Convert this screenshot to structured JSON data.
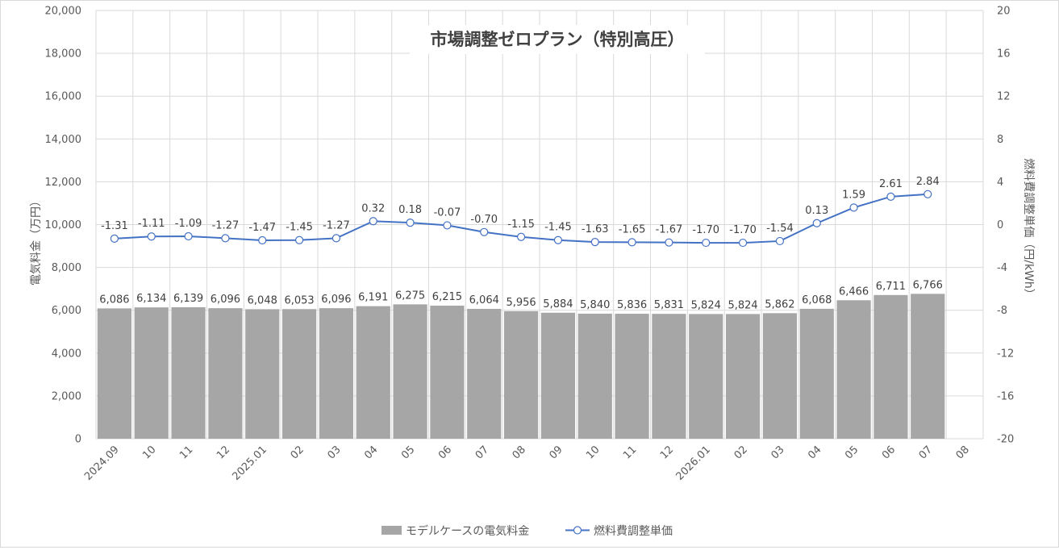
{
  "chart_data": {
    "type": "bar",
    "title": "市場調整ゼロプラン（特別高圧）",
    "categories": [
      "2024.09",
      "10",
      "11",
      "12",
      "2025.01",
      "02",
      "03",
      "04",
      "05",
      "06",
      "07",
      "08",
      "09",
      "10",
      "11",
      "12",
      "2026.01",
      "02",
      "03",
      "04",
      "05",
      "06",
      "07",
      "08"
    ],
    "series": [
      {
        "name": "モデルケースの電気料金",
        "type": "bar",
        "axis": "left",
        "color": "#a6a6a6",
        "values": [
          6086,
          6134,
          6139,
          6096,
          6048,
          6053,
          6096,
          6191,
          6275,
          6215,
          6064,
          5956,
          5884,
          5840,
          5836,
          5831,
          5824,
          5824,
          5862,
          6068,
          6466,
          6711,
          6766,
          null
        ],
        "labels": [
          "6,086",
          "6,134",
          "6,139",
          "6,096",
          "6,048",
          "6,053",
          "6,096",
          "6,191",
          "6,275",
          "6,215",
          "6,064",
          "5,956",
          "5,884",
          "5,840",
          "5,836",
          "5,831",
          "5,824",
          "5,824",
          "5,862",
          "6,068",
          "6,466",
          "6,711",
          "6,766",
          ""
        ]
      },
      {
        "name": "燃料費調整単価",
        "type": "line",
        "axis": "right",
        "color": "#4472c4",
        "marker": "open-circle",
        "values": [
          -1.31,
          -1.11,
          -1.09,
          -1.27,
          -1.47,
          -1.45,
          -1.27,
          0.32,
          0.18,
          -0.07,
          -0.7,
          -1.15,
          -1.45,
          -1.63,
          -1.65,
          -1.67,
          -1.7,
          -1.7,
          -1.54,
          0.13,
          1.59,
          2.61,
          2.84,
          null
        ],
        "labels": [
          "-1.31",
          "-1.11",
          "-1.09",
          "-1.27",
          "-1.47",
          "-1.45",
          "-1.27",
          "0.32",
          "0.18",
          "-0.07",
          "-0.70",
          "-1.15",
          "-1.45",
          "-1.63",
          "-1.65",
          "-1.67",
          "-1.70",
          "-1.70",
          "-1.54",
          "0.13",
          "1.59",
          "2.61",
          "2.84",
          ""
        ]
      }
    ],
    "ylabel": "電気料金（万円）",
    "y2label": "燃料費調整単価（円/kWh）",
    "ylim": [
      0,
      20000
    ],
    "y2lim": [
      -20,
      20
    ],
    "yticks": [
      "0",
      "2,000",
      "4,000",
      "6,000",
      "8,000",
      "10,000",
      "12,000",
      "14,000",
      "16,000",
      "18,000",
      "20,000"
    ],
    "y2ticks": [
      "-20",
      "-16",
      "-12",
      "-8",
      "-4",
      "0",
      "4",
      "8",
      "12",
      "16",
      "20"
    ],
    "grid": true,
    "legend_position": "bottom"
  }
}
